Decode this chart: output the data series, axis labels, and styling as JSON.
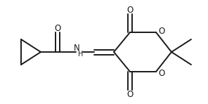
{
  "background": "#ffffff",
  "line_color": "#1a1a1a",
  "line_width": 1.4,
  "font_size": 8.5,
  "figsize": [
    2.96,
    1.48
  ],
  "dpi": 100,
  "xlim": [
    0,
    296
  ],
  "ylim": [
    0,
    148
  ]
}
